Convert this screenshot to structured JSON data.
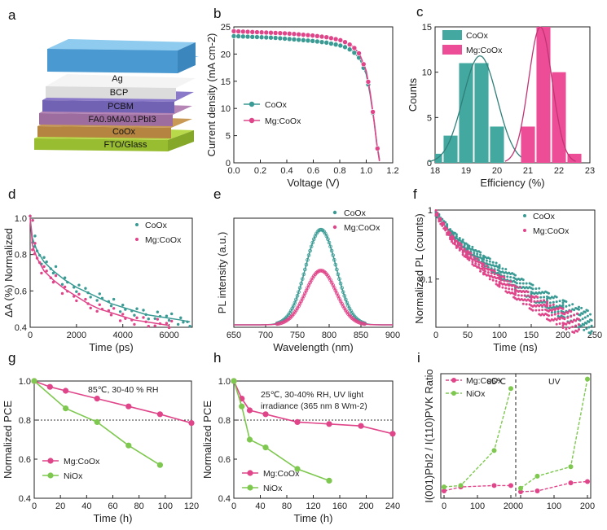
{
  "figure": {
    "panel_labels": [
      "a",
      "b",
      "c",
      "d",
      "e",
      "f",
      "g",
      "h",
      "i"
    ]
  },
  "colors": {
    "coox": "#3a9a94",
    "mgcoox": "#e0458a",
    "nio": "#7ec850",
    "bar_teal": "#43a8a0",
    "bar_pink": "#ec4d96"
  },
  "stack": {
    "layers": [
      "Ag",
      "BCP",
      "PCBM",
      "FA0.9MA0.1PbI3",
      "CoOx",
      "FTO/Glass"
    ]
  },
  "chart_data": [
    {
      "panel": "b",
      "type": "line",
      "xlabel": "Voltage (V)",
      "ylabel": "Current density (mA cm-2)",
      "xlim": [
        0.0,
        1.2
      ],
      "ylim": [
        0,
        25
      ],
      "xticks": [
        "0.0",
        "0.2",
        "0.4",
        "0.6",
        "0.8",
        "1.0",
        "1.2"
      ],
      "yticks": [
        "0",
        "5",
        "10",
        "15",
        "20",
        "25"
      ],
      "legend": [
        "CoOx",
        "Mg:CoOx"
      ],
      "series": [
        {
          "name": "CoOx",
          "x": [
            0,
            0.1,
            0.2,
            0.3,
            0.4,
            0.5,
            0.6,
            0.7,
            0.8,
            0.85,
            0.9,
            0.95,
            1.0,
            1.03,
            1.06,
            1.08,
            1.1
          ],
          "y": [
            23.3,
            23.2,
            23.1,
            23.0,
            22.8,
            22.6,
            22.4,
            22.1,
            21.6,
            21.2,
            20.5,
            19.2,
            16.3,
            12.5,
            7.5,
            3.5,
            0.6
          ]
        },
        {
          "name": "Mg:CoOx",
          "x": [
            0,
            0.1,
            0.2,
            0.3,
            0.4,
            0.5,
            0.6,
            0.7,
            0.8,
            0.85,
            0.9,
            0.95,
            1.0,
            1.03,
            1.06,
            1.08,
            1.1
          ],
          "y": [
            24.2,
            24.1,
            24.0,
            23.9,
            23.8,
            23.6,
            23.4,
            23.1,
            22.6,
            22.1,
            21.4,
            20.0,
            16.9,
            12.9,
            7.6,
            3.4,
            0.3
          ]
        }
      ]
    },
    {
      "panel": "c",
      "type": "bar",
      "xlabel": "Efficiency (%)",
      "ylabel": "Counts",
      "xlim": [
        18,
        23
      ],
      "ylim": [
        0,
        15
      ],
      "xticks": [
        "18",
        "19",
        "20",
        "21",
        "22",
        "23"
      ],
      "yticks": [
        "0",
        "5",
        "10",
        "15"
      ],
      "legend": [
        "CoOx",
        "Mg:CoOx"
      ],
      "series": [
        {
          "name": "CoOx",
          "x": [
            18.0,
            18.5,
            19.0,
            19.5,
            20.0
          ],
          "values": [
            1,
            3,
            11,
            11,
            4
          ],
          "fit_center": 19.45,
          "fit_sigma": 0.55,
          "fit_peak": 11.8
        },
        {
          "name": "Mg:CoOx",
          "x": [
            21.0,
            21.5,
            22.0,
            22.5
          ],
          "values": [
            4,
            15,
            10,
            1
          ],
          "fit_center": 21.4,
          "fit_sigma": 0.38,
          "fit_peak": 15.0
        }
      ]
    },
    {
      "panel": "d",
      "type": "scatter",
      "xlabel": "Time (ps)",
      "ylabel": "ΔA (%) Normalized",
      "xlim": [
        0,
        7000
      ],
      "ylim": [
        0.4,
        1.0
      ],
      "xticks": [
        "0",
        "2000",
        "4000",
        "6000"
      ],
      "yticks": [
        "0.4",
        "0.6",
        "0.8",
        "1.0"
      ],
      "legend": [
        "CoOx",
        "Mg:CoOx"
      ],
      "series": [
        {
          "name": "CoOx",
          "x": [
            0,
            100,
            300,
            600,
            1000,
            1500,
            2000,
            2500,
            3000,
            3500,
            4000,
            4500,
            5000,
            5500,
            6000,
            6500,
            6900
          ],
          "y": [
            1.0,
            0.89,
            0.82,
            0.76,
            0.71,
            0.66,
            0.62,
            0.59,
            0.56,
            0.53,
            0.51,
            0.49,
            0.47,
            0.46,
            0.45,
            0.44,
            0.43
          ]
        },
        {
          "name": "Mg:CoOx",
          "x": [
            0,
            100,
            300,
            600,
            1000,
            1500,
            2000,
            2500,
            3000,
            3500,
            4000,
            4500,
            5000,
            5500,
            6000
          ],
          "y": [
            1.0,
            0.85,
            0.78,
            0.71,
            0.66,
            0.61,
            0.57,
            0.53,
            0.5,
            0.48,
            0.46,
            0.44,
            0.43,
            0.42,
            0.41
          ]
        }
      ]
    },
    {
      "panel": "e",
      "type": "line",
      "xlabel": "Wavelength (nm)",
      "ylabel": "PL intensity (a.u.)",
      "xlim": [
        650,
        900
      ],
      "xticks": [
        "650",
        "700",
        "750",
        "800",
        "850",
        "900"
      ],
      "legend": [
        "CoOx",
        "Mg:CoOx"
      ],
      "series": [
        {
          "name": "CoOx",
          "center": 787,
          "sigma": 24,
          "peak": 1.0
        },
        {
          "name": "Mg:CoOx",
          "center": 787,
          "sigma": 24,
          "peak": 0.57
        }
      ]
    },
    {
      "panel": "f",
      "type": "scatter",
      "xlabel": "Time (ns)",
      "ylabel": "Normalized PL (counts)",
      "xlim": [
        0,
        250
      ],
      "ylim": [
        0.02,
        1
      ],
      "xticks": [
        "0",
        "50",
        "100",
        "150",
        "200",
        "250"
      ],
      "yticks": [
        "0.1",
        "1"
      ],
      "legend": [
        "CoOx",
        "Mg:CoOx"
      ],
      "series": [
        {
          "name": "CoOx",
          "x": [
            0,
            25,
            50,
            75,
            100,
            125,
            150,
            175,
            200,
            225,
            245
          ],
          "y": [
            0.9,
            0.45,
            0.28,
            0.19,
            0.13,
            0.09,
            0.065,
            0.048,
            0.036,
            0.028,
            0.023
          ]
        },
        {
          "name": "Mg:CoOx",
          "x": [
            0,
            25,
            50,
            75,
            100,
            125,
            150,
            175,
            200,
            225
          ],
          "y": [
            0.9,
            0.38,
            0.22,
            0.14,
            0.095,
            0.066,
            0.047,
            0.035,
            0.027,
            0.022
          ]
        }
      ]
    },
    {
      "panel": "g",
      "type": "line",
      "xlabel": "Time (h)",
      "ylabel": "Normalized PCE",
      "xlim": [
        0,
        120
      ],
      "ylim": [
        0.4,
        1.0
      ],
      "xticks": [
        "0",
        "20",
        "40",
        "60",
        "80",
        "100",
        "120"
      ],
      "yticks": [
        "0.4",
        "0.6",
        "0.8",
        "1.0"
      ],
      "annotation": "85℃, 30-40 % RH",
      "reference_line": 0.8,
      "legend": [
        "Mg:CoOx",
        "NiOx"
      ],
      "series": [
        {
          "name": "Mg:CoOx",
          "x": [
            0,
            12,
            24,
            48,
            72,
            96,
            120
          ],
          "y": [
            1.0,
            0.97,
            0.95,
            0.91,
            0.87,
            0.83,
            0.785
          ]
        },
        {
          "name": "NiOx",
          "x": [
            0,
            24,
            48,
            72,
            96
          ],
          "y": [
            1.0,
            0.86,
            0.79,
            0.67,
            0.57
          ]
        }
      ]
    },
    {
      "panel": "h",
      "type": "line",
      "xlabel": "Time (h)",
      "ylabel": "Normalized PCE",
      "xlim": [
        0,
        240
      ],
      "ylim": [
        0.4,
        1.0
      ],
      "xticks": [
        "0",
        "40",
        "80",
        "120",
        "160",
        "200",
        "240"
      ],
      "yticks": [
        "0.4",
        "0.6",
        "0.8",
        "1.0"
      ],
      "annotation": [
        "25℃, 30-40% RH, UV light",
        "irradiance (365 nm 8 Wm-2)"
      ],
      "reference_line": 0.8,
      "legend": [
        "Mg:CoOx",
        "NiOx"
      ],
      "series": [
        {
          "name": "Mg:CoOx",
          "x": [
            0,
            12,
            24,
            48,
            96,
            144,
            192,
            240
          ],
          "y": [
            1.0,
            0.91,
            0.85,
            0.83,
            0.79,
            0.78,
            0.77,
            0.73
          ]
        },
        {
          "name": "NiOx",
          "x": [
            0,
            12,
            24,
            48,
            96,
            144
          ],
          "y": [
            1.0,
            0.87,
            0.7,
            0.66,
            0.55,
            0.49
          ]
        }
      ]
    },
    {
      "panel": "i",
      "type": "line",
      "ylabel": "I(001)PbI2 / I(110)PVK Ratio",
      "xlim": [
        0,
        200
      ],
      "ylim": [
        0,
        4.5
      ],
      "xticks": [
        "0",
        "100",
        "200"
      ],
      "segments": [
        "85℃",
        "UV"
      ],
      "legend": [
        "Mg:CoOx",
        "NiOx"
      ],
      "series": [
        {
          "name": "Mg:CoOx",
          "segment": "85℃",
          "x": [
            0,
            50,
            150,
            200
          ],
          "y": [
            0.15,
            0.3,
            0.35,
            0.35
          ]
        },
        {
          "name": "NiOx",
          "segment": "85℃",
          "x": [
            0,
            50,
            150,
            200
          ],
          "y": [
            0.3,
            0.35,
            1.65,
            3.95
          ]
        },
        {
          "name": "Mg:CoOx",
          "segment": "UV",
          "x": [
            0,
            50,
            150,
            200
          ],
          "y": [
            0.12,
            0.15,
            0.45,
            0.5
          ]
        },
        {
          "name": "NiOx",
          "segment": "UV",
          "x": [
            0,
            50,
            150,
            200
          ],
          "y": [
            0.25,
            0.7,
            1.05,
            4.3
          ]
        }
      ]
    }
  ]
}
